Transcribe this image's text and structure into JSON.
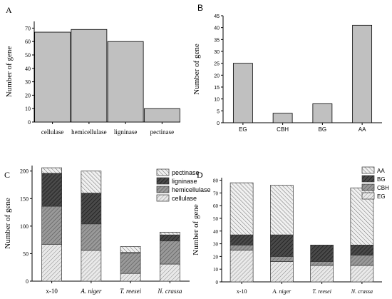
{
  "chart_data": [
    {
      "panel": "A",
      "type": "bar",
      "ylabel": "Number of gene",
      "categories": [
        "cellulase",
        "hemicellulase",
        "ligninase",
        "pectinase"
      ],
      "values": [
        67,
        69,
        60,
        10
      ],
      "ylim": [
        0,
        75
      ],
      "yticks": [
        0,
        10,
        20,
        30,
        40,
        50,
        60,
        70
      ],
      "bar_color": "#c0c0c0"
    },
    {
      "panel": "B",
      "type": "bar",
      "ylabel": "Number of gene",
      "categories": [
        "EG",
        "CBH",
        "BG",
        "AA"
      ],
      "values": [
        25,
        4,
        8,
        41
      ],
      "ylim": [
        0,
        45
      ],
      "yticks": [
        0,
        5,
        10,
        15,
        20,
        25,
        30,
        35,
        40,
        45
      ],
      "bar_color": "#c0c0c0"
    },
    {
      "panel": "C",
      "type": "bar",
      "stacked": true,
      "ylabel": "Number of gene",
      "categories": [
        "x-10",
        "A. niger",
        "T. reesei",
        "N. crassa"
      ],
      "category_italic": [
        false,
        true,
        true,
        true
      ],
      "series": [
        {
          "name": "cellulase",
          "values": [
            67,
            56,
            14,
            31
          ]
        },
        {
          "name": "hemicellulase",
          "values": [
            69,
            48,
            37,
            42
          ]
        },
        {
          "name": "ligninase",
          "values": [
            60,
            56,
            1,
            11
          ]
        },
        {
          "name": "pectinase",
          "values": [
            10,
            40,
            11,
            5
          ]
        }
      ],
      "legend_order": [
        "pectinase",
        "ligninase",
        "hemicellulase",
        "cellulase"
      ],
      "legend_position": "top-right",
      "ylim": [
        0,
        210
      ],
      "yticks": [
        0,
        50,
        100,
        150,
        200
      ]
    },
    {
      "panel": "D",
      "type": "bar",
      "stacked": true,
      "ylabel": "Number of gene",
      "categories": [
        "x-10",
        "A. niger",
        "T. reesei",
        "N. crassa"
      ],
      "category_italic": [
        false,
        true,
        true,
        true
      ],
      "series": [
        {
          "name": "EG",
          "values": [
            25,
            16,
            13,
            13
          ]
        },
        {
          "name": "CBH",
          "values": [
            4,
            4,
            3,
            8
          ]
        },
        {
          "name": "BG",
          "values": [
            8,
            17,
            13,
            8
          ]
        },
        {
          "name": "AA",
          "values": [
            41,
            39,
            0,
            45
          ]
        }
      ],
      "legend_order": [
        "AA",
        "BG",
        "CBH",
        "EG"
      ],
      "legend_position": "top-right",
      "ylim": [
        0,
        82
      ],
      "yticks": [
        0,
        10,
        20,
        30,
        40,
        50,
        60,
        70,
        80
      ]
    }
  ],
  "panel_labels": [
    "A",
    "B",
    "C",
    "D"
  ]
}
